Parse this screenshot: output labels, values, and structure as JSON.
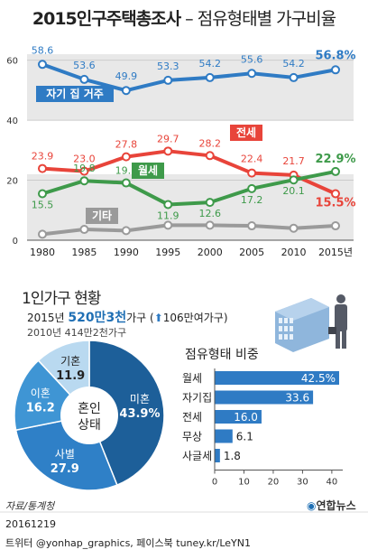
{
  "header": {
    "title_main": "2015인구주택총조사",
    "title_sub": " – 점유형태별 가구비율"
  },
  "chart_data": [
    {
      "type": "line",
      "x": [
        "1980",
        "1985",
        "1990",
        "1995",
        "2000",
        "2005",
        "2010",
        "2015년"
      ],
      "ylim": [
        0,
        62
      ],
      "yticks": [
        "0",
        "20",
        "40",
        "60"
      ],
      "series": [
        {
          "name": "자기 집 거주",
          "color": "#2f7bc4",
          "values": [
            58.6,
            53.6,
            49.9,
            53.3,
            54.2,
            55.6,
            54.2,
            56.8
          ],
          "labels": [
            "58.6",
            "53.6",
            "49.9",
            "53.3",
            "54.2",
            "55.6",
            "54.2",
            "56.8%"
          ]
        },
        {
          "name": "전세",
          "color": "#e8443a",
          "values": [
            23.9,
            23.0,
            27.8,
            29.7,
            28.2,
            22.4,
            21.7,
            15.5
          ],
          "labels": [
            "23.9",
            "23.0",
            "27.8",
            "29.7",
            "28.2",
            "22.4",
            "21.7",
            "15.5%"
          ]
        },
        {
          "name": "월세",
          "color": "#3e9a4a",
          "values": [
            15.5,
            19.8,
            19.1,
            11.9,
            12.6,
            17.2,
            20.1,
            22.9
          ],
          "labels": [
            "15.5",
            "19.8",
            "19.1",
            "11.9",
            "12.6",
            "17.2",
            "20.1",
            "22.9%"
          ]
        },
        {
          "name": "기타",
          "color": "#9a9a9a",
          "values": [
            2.0,
            3.6,
            3.2,
            5.0,
            5.0,
            4.8,
            4.0,
            4.8
          ],
          "labels": []
        }
      ]
    },
    {
      "type": "pie",
      "center_label": [
        "혼인",
        "상태"
      ],
      "slices": [
        {
          "name": "미혼",
          "value": 43.9,
          "label": "43.9%",
          "color": "#1d5f99"
        },
        {
          "name": "사별",
          "value": 27.9,
          "label": "27.9",
          "color": "#2f80c7"
        },
        {
          "name": "이혼",
          "value": 16.2,
          "label": "16.2",
          "color": "#3f95d4"
        },
        {
          "name": "기혼",
          "value": 11.9,
          "label": "11.9",
          "color": "#b9d9f0"
        }
      ]
    },
    {
      "type": "bar",
      "title": "점유형태 비중",
      "categories": [
        "월세",
        "자기집",
        "전세",
        "무상",
        "사글세"
      ],
      "values": [
        42.5,
        33.6,
        16.0,
        6.1,
        1.8
      ],
      "labels": [
        "42.5%",
        "33.6",
        "16.0",
        "6.1",
        "1.8"
      ],
      "xlim": [
        0,
        42.5
      ],
      "xticks": [
        "0",
        "10",
        "20",
        "30",
        "40"
      ]
    }
  ],
  "single_household": {
    "section_title": "1인가구 현황",
    "line1_prefix": "2015년 ",
    "line1_big": "520만3천",
    "line1_mid": "가구 (",
    "line1_arrow": "⬆",
    "line1_suffix": "106만여가구)",
    "line2": "2010년 414만2천가구"
  },
  "colors": {
    "accent": "#1f6fb4",
    "band": "#e8e8e8",
    "bar": "#2f7bc4"
  },
  "footer": {
    "source": "자료/통계청",
    "date": "20161219",
    "credit": "트위터 @yonhap_graphics, 페이스북 tuney.kr/LeYN1",
    "logo": "연합뉴스"
  }
}
